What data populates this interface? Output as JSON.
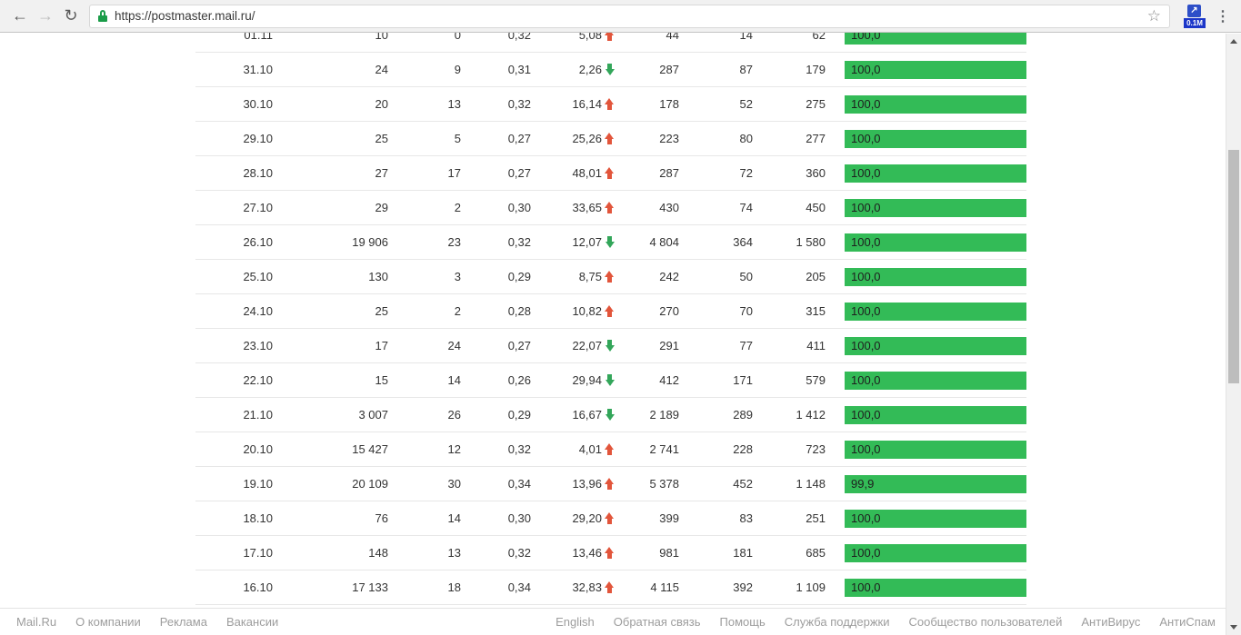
{
  "browser": {
    "back_icon": "←",
    "forward_icon": "→",
    "reload_icon": "↻",
    "url": "https://postmaster.mail.ru/",
    "bookmark_star_icon": "☆",
    "extension_arrow_icon": "↗",
    "extension_badge": "0.1M",
    "menu_icon": "⋮"
  },
  "table": {
    "rows": [
      {
        "date": "01.11",
        "v1": "10",
        "v2": "0",
        "v3": "0,32",
        "trend": "5,08",
        "trend_dir": "up",
        "v4": "44",
        "v5": "14",
        "v6": "62",
        "rate": "100,0"
      },
      {
        "date": "31.10",
        "v1": "24",
        "v2": "9",
        "v3": "0,31",
        "trend": "2,26",
        "trend_dir": "down",
        "v4": "287",
        "v5": "87",
        "v6": "179",
        "rate": "100,0"
      },
      {
        "date": "30.10",
        "v1": "20",
        "v2": "13",
        "v3": "0,32",
        "trend": "16,14",
        "trend_dir": "up",
        "v4": "178",
        "v5": "52",
        "v6": "275",
        "rate": "100,0"
      },
      {
        "date": "29.10",
        "v1": "25",
        "v2": "5",
        "v3": "0,27",
        "trend": "25,26",
        "trend_dir": "up",
        "v4": "223",
        "v5": "80",
        "v6": "277",
        "rate": "100,0"
      },
      {
        "date": "28.10",
        "v1": "27",
        "v2": "17",
        "v3": "0,27",
        "trend": "48,01",
        "trend_dir": "up",
        "v4": "287",
        "v5": "72",
        "v6": "360",
        "rate": "100,0"
      },
      {
        "date": "27.10",
        "v1": "29",
        "v2": "2",
        "v3": "0,30",
        "trend": "33,65",
        "trend_dir": "up",
        "v4": "430",
        "v5": "74",
        "v6": "450",
        "rate": "100,0"
      },
      {
        "date": "26.10",
        "v1": "19 906",
        "v2": "23",
        "v3": "0,32",
        "trend": "12,07",
        "trend_dir": "down",
        "v4": "4 804",
        "v5": "364",
        "v6": "1 580",
        "rate": "100,0"
      },
      {
        "date": "25.10",
        "v1": "130",
        "v2": "3",
        "v3": "0,29",
        "trend": "8,75",
        "trend_dir": "up",
        "v4": "242",
        "v5": "50",
        "v6": "205",
        "rate": "100,0"
      },
      {
        "date": "24.10",
        "v1": "25",
        "v2": "2",
        "v3": "0,28",
        "trend": "10,82",
        "trend_dir": "up",
        "v4": "270",
        "v5": "70",
        "v6": "315",
        "rate": "100,0"
      },
      {
        "date": "23.10",
        "v1": "17",
        "v2": "24",
        "v3": "0,27",
        "trend": "22,07",
        "trend_dir": "down",
        "v4": "291",
        "v5": "77",
        "v6": "411",
        "rate": "100,0"
      },
      {
        "date": "22.10",
        "v1": "15",
        "v2": "14",
        "v3": "0,26",
        "trend": "29,94",
        "trend_dir": "down",
        "v4": "412",
        "v5": "171",
        "v6": "579",
        "rate": "100,0"
      },
      {
        "date": "21.10",
        "v1": "3 007",
        "v2": "26",
        "v3": "0,29",
        "trend": "16,67",
        "trend_dir": "down",
        "v4": "2 189",
        "v5": "289",
        "v6": "1 412",
        "rate": "100,0"
      },
      {
        "date": "20.10",
        "v1": "15 427",
        "v2": "12",
        "v3": "0,32",
        "trend": "4,01",
        "trend_dir": "up",
        "v4": "2 741",
        "v5": "228",
        "v6": "723",
        "rate": "100,0"
      },
      {
        "date": "19.10",
        "v1": "20 109",
        "v2": "30",
        "v3": "0,34",
        "trend": "13,96",
        "trend_dir": "up",
        "v4": "5 378",
        "v5": "452",
        "v6": "1 148",
        "rate": "99,9"
      },
      {
        "date": "18.10",
        "v1": "76",
        "v2": "14",
        "v3": "0,30",
        "trend": "29,20",
        "trend_dir": "up",
        "v4": "399",
        "v5": "83",
        "v6": "251",
        "rate": "100,0"
      },
      {
        "date": "17.10",
        "v1": "148",
        "v2": "13",
        "v3": "0,32",
        "trend": "13,46",
        "trend_dir": "up",
        "v4": "981",
        "v5": "181",
        "v6": "685",
        "rate": "100,0"
      },
      {
        "date": "16.10",
        "v1": "17 133",
        "v2": "18",
        "v3": "0,34",
        "trend": "32,83",
        "trend_dir": "up",
        "v4": "4 115",
        "v5": "392",
        "v6": "1 109",
        "rate": "100,0"
      }
    ]
  },
  "footer": {
    "left_links": [
      "Mail.Ru",
      "О компании",
      "Реклама",
      "Вакансии"
    ],
    "right_links": [
      "English",
      "Обратная связь",
      "Помощь",
      "Служба поддержки",
      "Сообщество пользователей",
      "АнтиВирус",
      "АнтиСпам"
    ]
  },
  "colors": {
    "bar_green": "#33bb57",
    "trend_up_red": "#e2553b",
    "trend_down_green": "#33a65a",
    "lock_green": "#1a9c49",
    "extension_blue": "#2d4fc8"
  }
}
